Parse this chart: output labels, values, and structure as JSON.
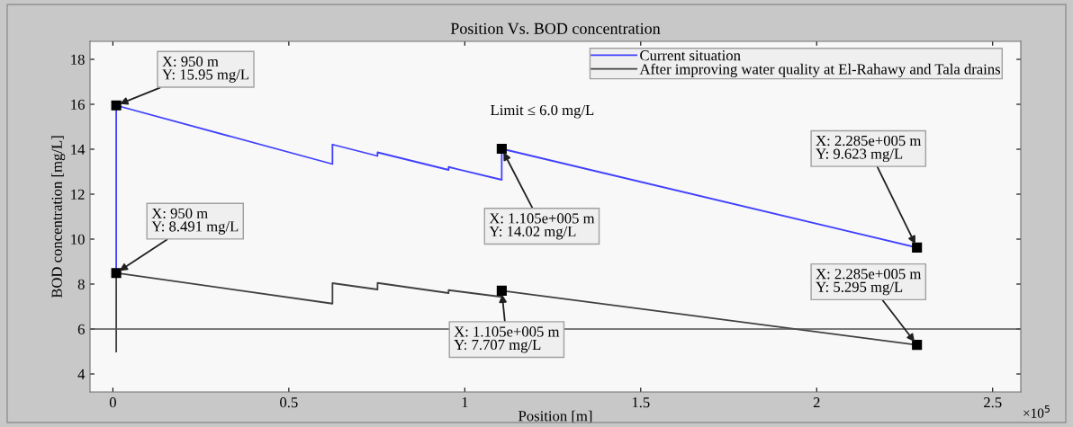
{
  "chart_data": {
    "type": "line",
    "title": "Position Vs. BOD concentration",
    "xlabel": "Position [m]",
    "ylabel": "BOD concentration [mg/L]",
    "series": [
      {
        "name": "Current situation",
        "color": "#4040ff",
        "x": [
          0.0095,
          0.0095,
          0.624,
          0.624,
          0.752,
          0.752,
          0.954,
          0.954,
          1.105,
          1.105,
          2.285
        ],
        "values": [
          8.491,
          15.95,
          13.34,
          14.21,
          13.7,
          13.86,
          13.08,
          13.21,
          12.64,
          14.02,
          9.623
        ]
      },
      {
        "name": "After improving water quality at El-Rahawy and Tala drains",
        "color": "#404040",
        "x": [
          0.0095,
          0.0095,
          0.624,
          0.624,
          0.752,
          0.752,
          0.954,
          0.954,
          1.105,
          1.105,
          2.285
        ],
        "values": [
          5.0,
          8.491,
          7.13,
          8.04,
          7.76,
          8.05,
          7.6,
          7.73,
          7.43,
          7.707,
          5.295
        ]
      }
    ],
    "xlim": [
      -0.065,
      2.58
    ],
    "ylim": [
      3.2,
      18.8
    ],
    "xticks": [
      0,
      0.5,
      1,
      1.5,
      2,
      2.5
    ],
    "yticks": [
      4,
      6,
      8,
      10,
      12,
      14,
      16,
      18
    ],
    "ref_lines": [
      {
        "axis": "y",
        "value": 6,
        "color": "#505050",
        "line_style": "solid"
      }
    ],
    "annotations": [
      {
        "text": "X: 950 m\nY: 15.95 mg/L",
        "x": 0.0095,
        "y": 15.95
      },
      {
        "text": "X: 950 m\nY: 8.491 mg/L",
        "x": 0.0095,
        "y": 8.491
      },
      {
        "text": "X: 1.105e+005 m\nY: 14.02 mg/L",
        "x": 1.105,
        "y": 14.02
      },
      {
        "text": "X: 1.105e+005 m\nY: 7.707 mg/L",
        "x": 1.105,
        "y": 7.707
      },
      {
        "text": "X: 2.285e+005 m\nY: 9.623 mg/L",
        "x": 2.285,
        "y": 9.623
      },
      {
        "text": "X: 2.285e+005 m\nY: 5.295 mg/L",
        "x": 2.285,
        "y": 5.295
      },
      "Limit ≤ 6.0 mg/L",
      "×10$^{5}$"
    ],
    "legend": "top right",
    "grid": false,
    "marker": "none",
    "line_style": "solid"
  }
}
